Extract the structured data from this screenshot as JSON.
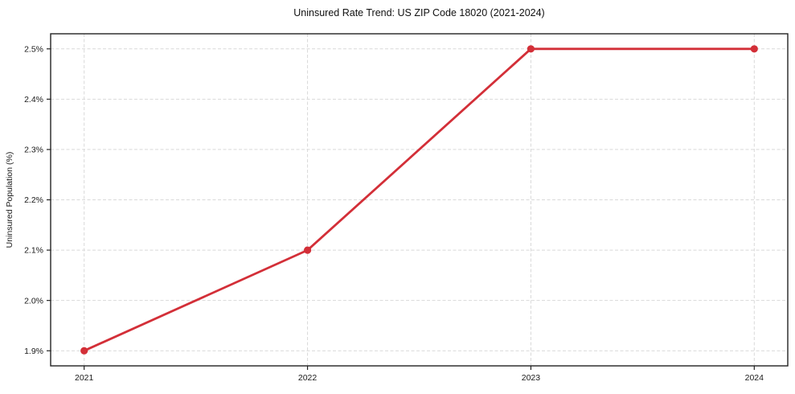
{
  "chart_data": {
    "type": "line",
    "title": "Uninsured Rate Trend: US ZIP Code 18020 (2021-2024)",
    "xlabel": "",
    "ylabel": "Uninsured Population (%)",
    "x": [
      2021,
      2022,
      2023,
      2024
    ],
    "series": [
      {
        "name": "Uninsured Rate",
        "values": [
          1.9,
          2.1,
          2.5,
          2.5
        ]
      }
    ],
    "xticks": [
      2021,
      2022,
      2023,
      2024
    ],
    "xtick_labels": [
      "2021",
      "2022",
      "2023",
      "2024"
    ],
    "yticks": [
      1.9,
      2.0,
      2.1,
      2.2,
      2.3,
      2.4,
      2.5
    ],
    "ytick_labels": [
      "1.9%",
      "2.0%",
      "2.1%",
      "2.2%",
      "2.3%",
      "2.4%",
      "2.5%"
    ],
    "xlim": [
      2020.85,
      2024.15
    ],
    "ylim": [
      1.87,
      2.53
    ],
    "grid": true,
    "grid_color": "#d9d9d9",
    "grid_dash": "4 2.5",
    "line_color": "#d32f38",
    "marker": "circle",
    "marker_radius": 4.6,
    "line_width": 2.8,
    "spine_color": "#222222",
    "background_color": "#ffffff"
  }
}
